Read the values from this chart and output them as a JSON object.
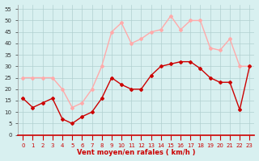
{
  "hours": [
    0,
    1,
    2,
    3,
    4,
    5,
    6,
    7,
    8,
    9,
    10,
    11,
    12,
    13,
    14,
    15,
    16,
    17,
    18,
    19,
    20,
    21,
    22,
    23
  ],
  "wind_avg": [
    16,
    12,
    14,
    16,
    7,
    5,
    8,
    10,
    16,
    25,
    22,
    20,
    20,
    26,
    30,
    31,
    32,
    32,
    29,
    25,
    23,
    23,
    11,
    30
  ],
  "wind_gust": [
    25,
    25,
    25,
    25,
    20,
    12,
    14,
    20,
    30,
    45,
    49,
    40,
    42,
    45,
    46,
    52,
    46,
    50,
    50,
    38,
    37,
    42,
    30,
    30
  ],
  "avg_color": "#cc0000",
  "gust_color": "#ffaaaa",
  "bg_color": "#d8f0f0",
  "grid_color": "#b0d0d0",
  "xlabel": "Vent moyen/en rafales ( km/h )",
  "xlabel_color": "#cc0000",
  "ylim": [
    0,
    57
  ],
  "yticks": [
    0,
    5,
    10,
    15,
    20,
    25,
    30,
    35,
    40,
    45,
    50,
    55
  ],
  "xticks": [
    0,
    1,
    2,
    3,
    4,
    5,
    6,
    7,
    8,
    9,
    10,
    11,
    12,
    13,
    14,
    15,
    16,
    17,
    18,
    19,
    20,
    21,
    22,
    23
  ]
}
